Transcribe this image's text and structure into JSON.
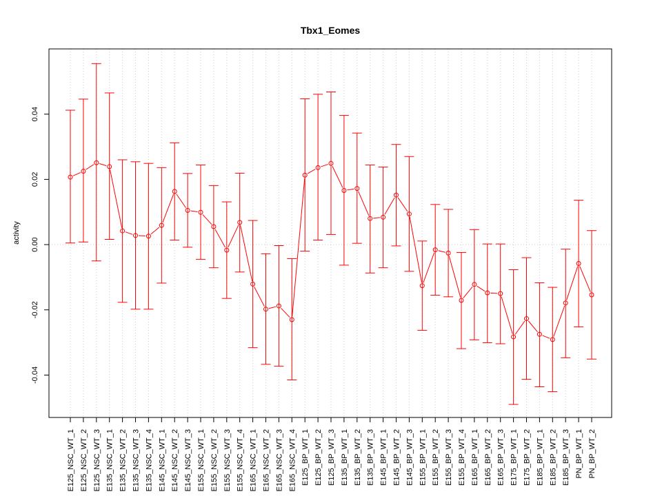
{
  "chart_data": {
    "type": "line",
    "title": "Tbx1_Eomes",
    "xlabel": "",
    "ylabel": "activity",
    "ylim": [
      -0.053,
      0.06
    ],
    "yticks": [
      -0.04,
      -0.02,
      0.0,
      0.02,
      0.04
    ],
    "ytick_labels": [
      "-0.04",
      "-0.02",
      "0.00",
      "0.02",
      "0.04"
    ],
    "grid": true,
    "color": "#ff0000",
    "grid_color": "#cccccc",
    "categories": [
      "E125_NSC_WT_1",
      "E125_NSC_WT_2",
      "E125_NSC_WT_3",
      "E135_NSC_WT_1",
      "E135_NSC_WT_2",
      "E135_NSC_WT_3",
      "E135_NSC_WT_4",
      "E145_NSC_WT_1",
      "E145_NSC_WT_2",
      "E145_NSC_WT_3",
      "E155_NSC_WT_1",
      "E155_NSC_WT_2",
      "E155_NSC_WT_3",
      "E155_NSC_WT_4",
      "E165_NSC_WT_1",
      "E165_NSC_WT_2",
      "E165_NSC_WT_3",
      "E165_NSC_WT_4",
      "E125_BP_WT_1",
      "E125_BP_WT_2",
      "E125_BP_WT_3",
      "E135_BP_WT_1",
      "E135_BP_WT_2",
      "E135_BP_WT_3",
      "E145_BP_WT_1",
      "E145_BP_WT_2",
      "E145_BP_WT_3",
      "E155_BP_WT_1",
      "E155_BP_WT_2",
      "E155_BP_WT_3",
      "E155_BP_WT_4",
      "E165_BP_WT_1",
      "E165_BP_WT_2",
      "E165_BP_WT_3",
      "E175_BP_WT_1",
      "E175_BP_WT_2",
      "E185_BP_WT_1",
      "E185_BP_WT_2",
      "E185_BP_WT_3",
      "PN_BP_WT_1",
      "PN_BP_WT_2"
    ],
    "values": [
      0.0207,
      0.0225,
      0.0251,
      0.0239,
      0.0042,
      0.0028,
      0.0026,
      0.0059,
      0.0163,
      0.0105,
      0.0099,
      0.0055,
      -0.0017,
      0.0068,
      -0.0121,
      -0.0198,
      -0.0188,
      -0.023,
      0.0213,
      0.0236,
      0.0249,
      0.0166,
      0.0172,
      0.008,
      0.0084,
      0.0152,
      0.0094,
      -0.0126,
      -0.0016,
      -0.0026,
      -0.0171,
      -0.0122,
      -0.0148,
      -0.015,
      -0.0283,
      -0.0227,
      -0.0275,
      -0.0291,
      -0.0179,
      -0.0058,
      -0.0154
    ],
    "upper": [
      0.0412,
      0.0446,
      0.0555,
      0.0465,
      0.026,
      0.0254,
      0.0249,
      0.0236,
      0.0312,
      0.0218,
      0.0244,
      0.0181,
      0.0131,
      0.0219,
      0.0074,
      -0.0028,
      -0.0003,
      -0.0043,
      0.0447,
      0.0461,
      0.0468,
      0.0396,
      0.0342,
      0.0244,
      0.0238,
      0.0307,
      0.027,
      0.0011,
      0.0123,
      0.0108,
      -0.0024,
      0.0046,
      0.0002,
      0.0002,
      -0.0077,
      -0.004,
      -0.0117,
      -0.0131,
      -0.0014,
      0.0136,
      0.0043
    ],
    "lower": [
      0.0005,
      0.0008,
      -0.005,
      0.0016,
      -0.0177,
      -0.0198,
      -0.0198,
      -0.0118,
      0.0014,
      -0.0008,
      -0.0045,
      -0.0071,
      -0.0165,
      -0.0084,
      -0.0316,
      -0.0367,
      -0.0373,
      -0.0415,
      -0.002,
      0.0014,
      0.0031,
      -0.0063,
      0.0004,
      -0.0087,
      -0.0071,
      -0.0004,
      -0.0082,
      -0.0263,
      -0.0155,
      -0.016,
      -0.0319,
      -0.0292,
      -0.0301,
      -0.0304,
      -0.049,
      -0.0413,
      -0.0436,
      -0.0451,
      -0.0347,
      -0.0252,
      -0.0351
    ]
  }
}
